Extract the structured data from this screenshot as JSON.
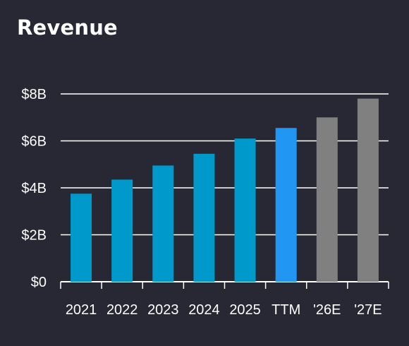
{
  "title": "Revenue",
  "chart_data": {
    "type": "bar",
    "categories": [
      "2021",
      "2022",
      "2023",
      "2024",
      "2025",
      "TTM",
      "'26E",
      "'27E"
    ],
    "values": [
      3.75,
      4.35,
      4.95,
      5.45,
      6.1,
      6.55,
      7.0,
      7.8
    ],
    "bar_colors": [
      "#0099cc",
      "#0099cc",
      "#0099cc",
      "#0099cc",
      "#0099cc",
      "#2196f3",
      "#808080",
      "#808080"
    ],
    "y_ticks": [
      {
        "value": 0,
        "label": "$0"
      },
      {
        "value": 2,
        "label": "$2B"
      },
      {
        "value": 4,
        "label": "$4B"
      },
      {
        "value": 6,
        "label": "$6B"
      },
      {
        "value": 8,
        "label": "$8B"
      }
    ],
    "ylim": [
      0,
      8
    ],
    "grid": true,
    "xlabel": "",
    "ylabel": "",
    "colors": {
      "background": "#272833",
      "grid": "#ffffff",
      "text": "#ffffff"
    }
  }
}
